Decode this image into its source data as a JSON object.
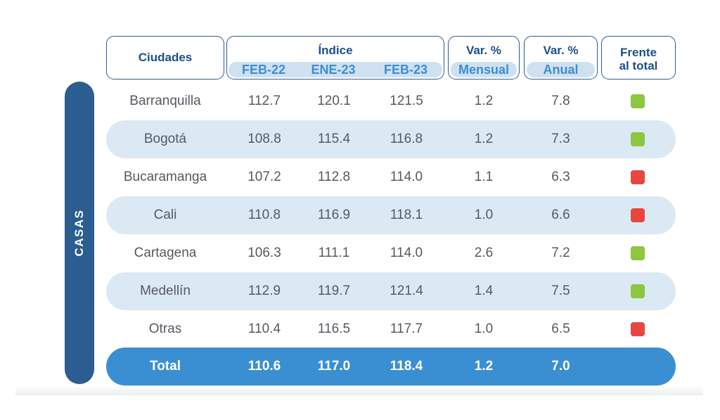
{
  "header": {
    "ciudades": "Ciudades",
    "indice": "Índice",
    "periods": [
      "FEB-22",
      "ENE-23",
      "FEB-23"
    ],
    "var_mensual_top": "Var. %",
    "var_mensual_bottom": "Mensual",
    "var_anual_top": "Var. %",
    "var_anual_bottom": "Anual",
    "frente_line1": "Frente",
    "frente_line2": "al total"
  },
  "side_label": "CASAS",
  "colors": {
    "green": "#8dc63f",
    "red": "#e8473f",
    "navy": "#2c5d91",
    "accent": "#3a8fd2"
  },
  "rows": [
    {
      "city": "Barranquilla",
      "feb22": "112.7",
      "ene23": "120.1",
      "feb23": "121.5",
      "mensual": "1.2",
      "anual": "7.8",
      "status": "green"
    },
    {
      "city": "Bogotá",
      "feb22": "108.8",
      "ene23": "115.4",
      "feb23": "116.8",
      "mensual": "1.2",
      "anual": "7.3",
      "status": "green"
    },
    {
      "city": "Bucaramanga",
      "feb22": "107.2",
      "ene23": "112.8",
      "feb23": "114.0",
      "mensual": "1.1",
      "anual": "6.3",
      "status": "red"
    },
    {
      "city": "Cali",
      "feb22": "110.8",
      "ene23": "116.9",
      "feb23": "118.1",
      "mensual": "1.0",
      "anual": "6.6",
      "status": "red"
    },
    {
      "city": "Cartagena",
      "feb22": "106.3",
      "ene23": "111.1",
      "feb23": "114.0",
      "mensual": "2.6",
      "anual": "7.2",
      "status": "green"
    },
    {
      "city": "Medellín",
      "feb22": "112.9",
      "ene23": "119.7",
      "feb23": "121.4",
      "mensual": "1.4",
      "anual": "7.5",
      "status": "green"
    },
    {
      "city": "Otras",
      "feb22": "110.4",
      "ene23": "116.5",
      "feb23": "117.7",
      "mensual": "1.0",
      "anual": "6.5",
      "status": "red"
    }
  ],
  "total": {
    "city": "Total",
    "feb22": "110.6",
    "ene23": "117.0",
    "feb23": "118.4",
    "mensual": "1.2",
    "anual": "7.0"
  }
}
